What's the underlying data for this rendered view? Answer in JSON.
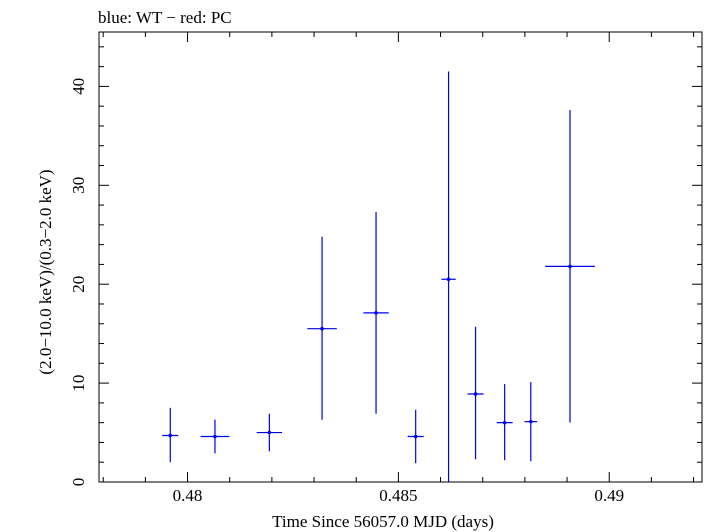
{
  "chart_data": {
    "type": "scatter",
    "title": "blue: WT − red: PC",
    "xlabel": "Time Since 56057.0 MJD (days)",
    "ylabel": "(2.0−10.0 keV)/(0.3−2.0 keV)",
    "xlim": [
      0.4779,
      0.4922
    ],
    "ylim": [
      0,
      45.5
    ],
    "x_major_ticks": [
      0.48,
      0.485,
      0.49
    ],
    "x_tick_labels": [
      "0.48",
      "0.485",
      "0.49"
    ],
    "y_major_ticks": [
      0,
      10,
      20,
      30,
      40
    ],
    "y_tick_labels": [
      "0",
      "10",
      "20",
      "30",
      "40"
    ],
    "x_minor_step": 0.001,
    "y_minor_step": 2,
    "grid": false,
    "series": [
      {
        "name": "WT",
        "color": "#0000ee",
        "points": [
          {
            "x": 0.47959,
            "y": 4.7,
            "xerr": [
              0.00019,
              0.00019
            ],
            "yerr": [
              2.7,
              2.8
            ]
          },
          {
            "x": 0.48065,
            "y": 4.6,
            "xerr": [
              0.00034,
              0.00034
            ],
            "yerr": [
              1.7,
              1.7
            ]
          },
          {
            "x": 0.48194,
            "y": 5.0,
            "xerr": [
              0.0003,
              0.0003
            ],
            "yerr": [
              1.9,
              1.9
            ]
          },
          {
            "x": 0.48319,
            "y": 15.5,
            "xerr": [
              0.00035,
              0.00035
            ],
            "yerr": [
              9.2,
              9.3
            ]
          },
          {
            "x": 0.48447,
            "y": 17.1,
            "xerr": [
              0.0003,
              0.0003
            ],
            "yerr": [
              10.2,
              10.2
            ]
          },
          {
            "x": 0.48541,
            "y": 4.6,
            "xerr": [
              0.00019,
              0.00019
            ],
            "yerr": [
              2.7,
              2.7
            ]
          },
          {
            "x": 0.48619,
            "y": 20.5,
            "xerr": [
              0.00017,
              0.00017
            ],
            "yerr": [
              20.5,
              21.0
            ]
          },
          {
            "x": 0.48683,
            "y": 8.9,
            "xerr": [
              0.00019,
              0.00019
            ],
            "yerr": [
              6.6,
              6.8
            ]
          },
          {
            "x": 0.48752,
            "y": 6.0,
            "xerr": [
              0.00019,
              0.00019
            ],
            "yerr": [
              3.8,
              3.9
            ]
          },
          {
            "x": 0.48814,
            "y": 6.1,
            "xerr": [
              0.00015,
              0.00015
            ],
            "yerr": [
              4.0,
              4.0
            ]
          },
          {
            "x": 0.48907,
            "y": 21.8,
            "xerr": [
              0.00059,
              0.00059
            ],
            "yerr": [
              15.8,
              15.8
            ]
          }
        ]
      }
    ]
  }
}
